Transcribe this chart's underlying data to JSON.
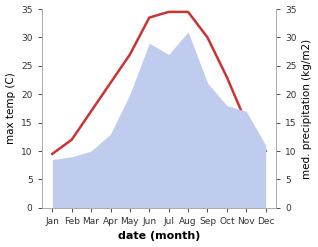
{
  "months": [
    "Jan",
    "Feb",
    "Mar",
    "Apr",
    "May",
    "Jun",
    "Jul",
    "Aug",
    "Sep",
    "Oct",
    "Nov",
    "Dec"
  ],
  "max_temp": [
    9.5,
    12.0,
    17.0,
    22.0,
    27.0,
    33.5,
    34.5,
    34.5,
    30.0,
    23.0,
    15.0,
    10.0
  ],
  "precipitation": [
    8.5,
    9.0,
    10.0,
    13.0,
    20.0,
    29.0,
    27.0,
    31.0,
    22.0,
    18.0,
    17.0,
    11.0
  ],
  "temp_color": "#cc3333",
  "precip_color": "#c0ccee",
  "background_color": "#ffffff",
  "ylabel_left": "max temp (C)",
  "ylabel_right": "med. precipitation (kg/m2)",
  "xlabel": "date (month)",
  "ylim": [
    0,
    35
  ],
  "label_fontsize": 7.5,
  "tick_fontsize": 6.5,
  "xlabel_fontsize": 8,
  "linewidth": 1.8
}
